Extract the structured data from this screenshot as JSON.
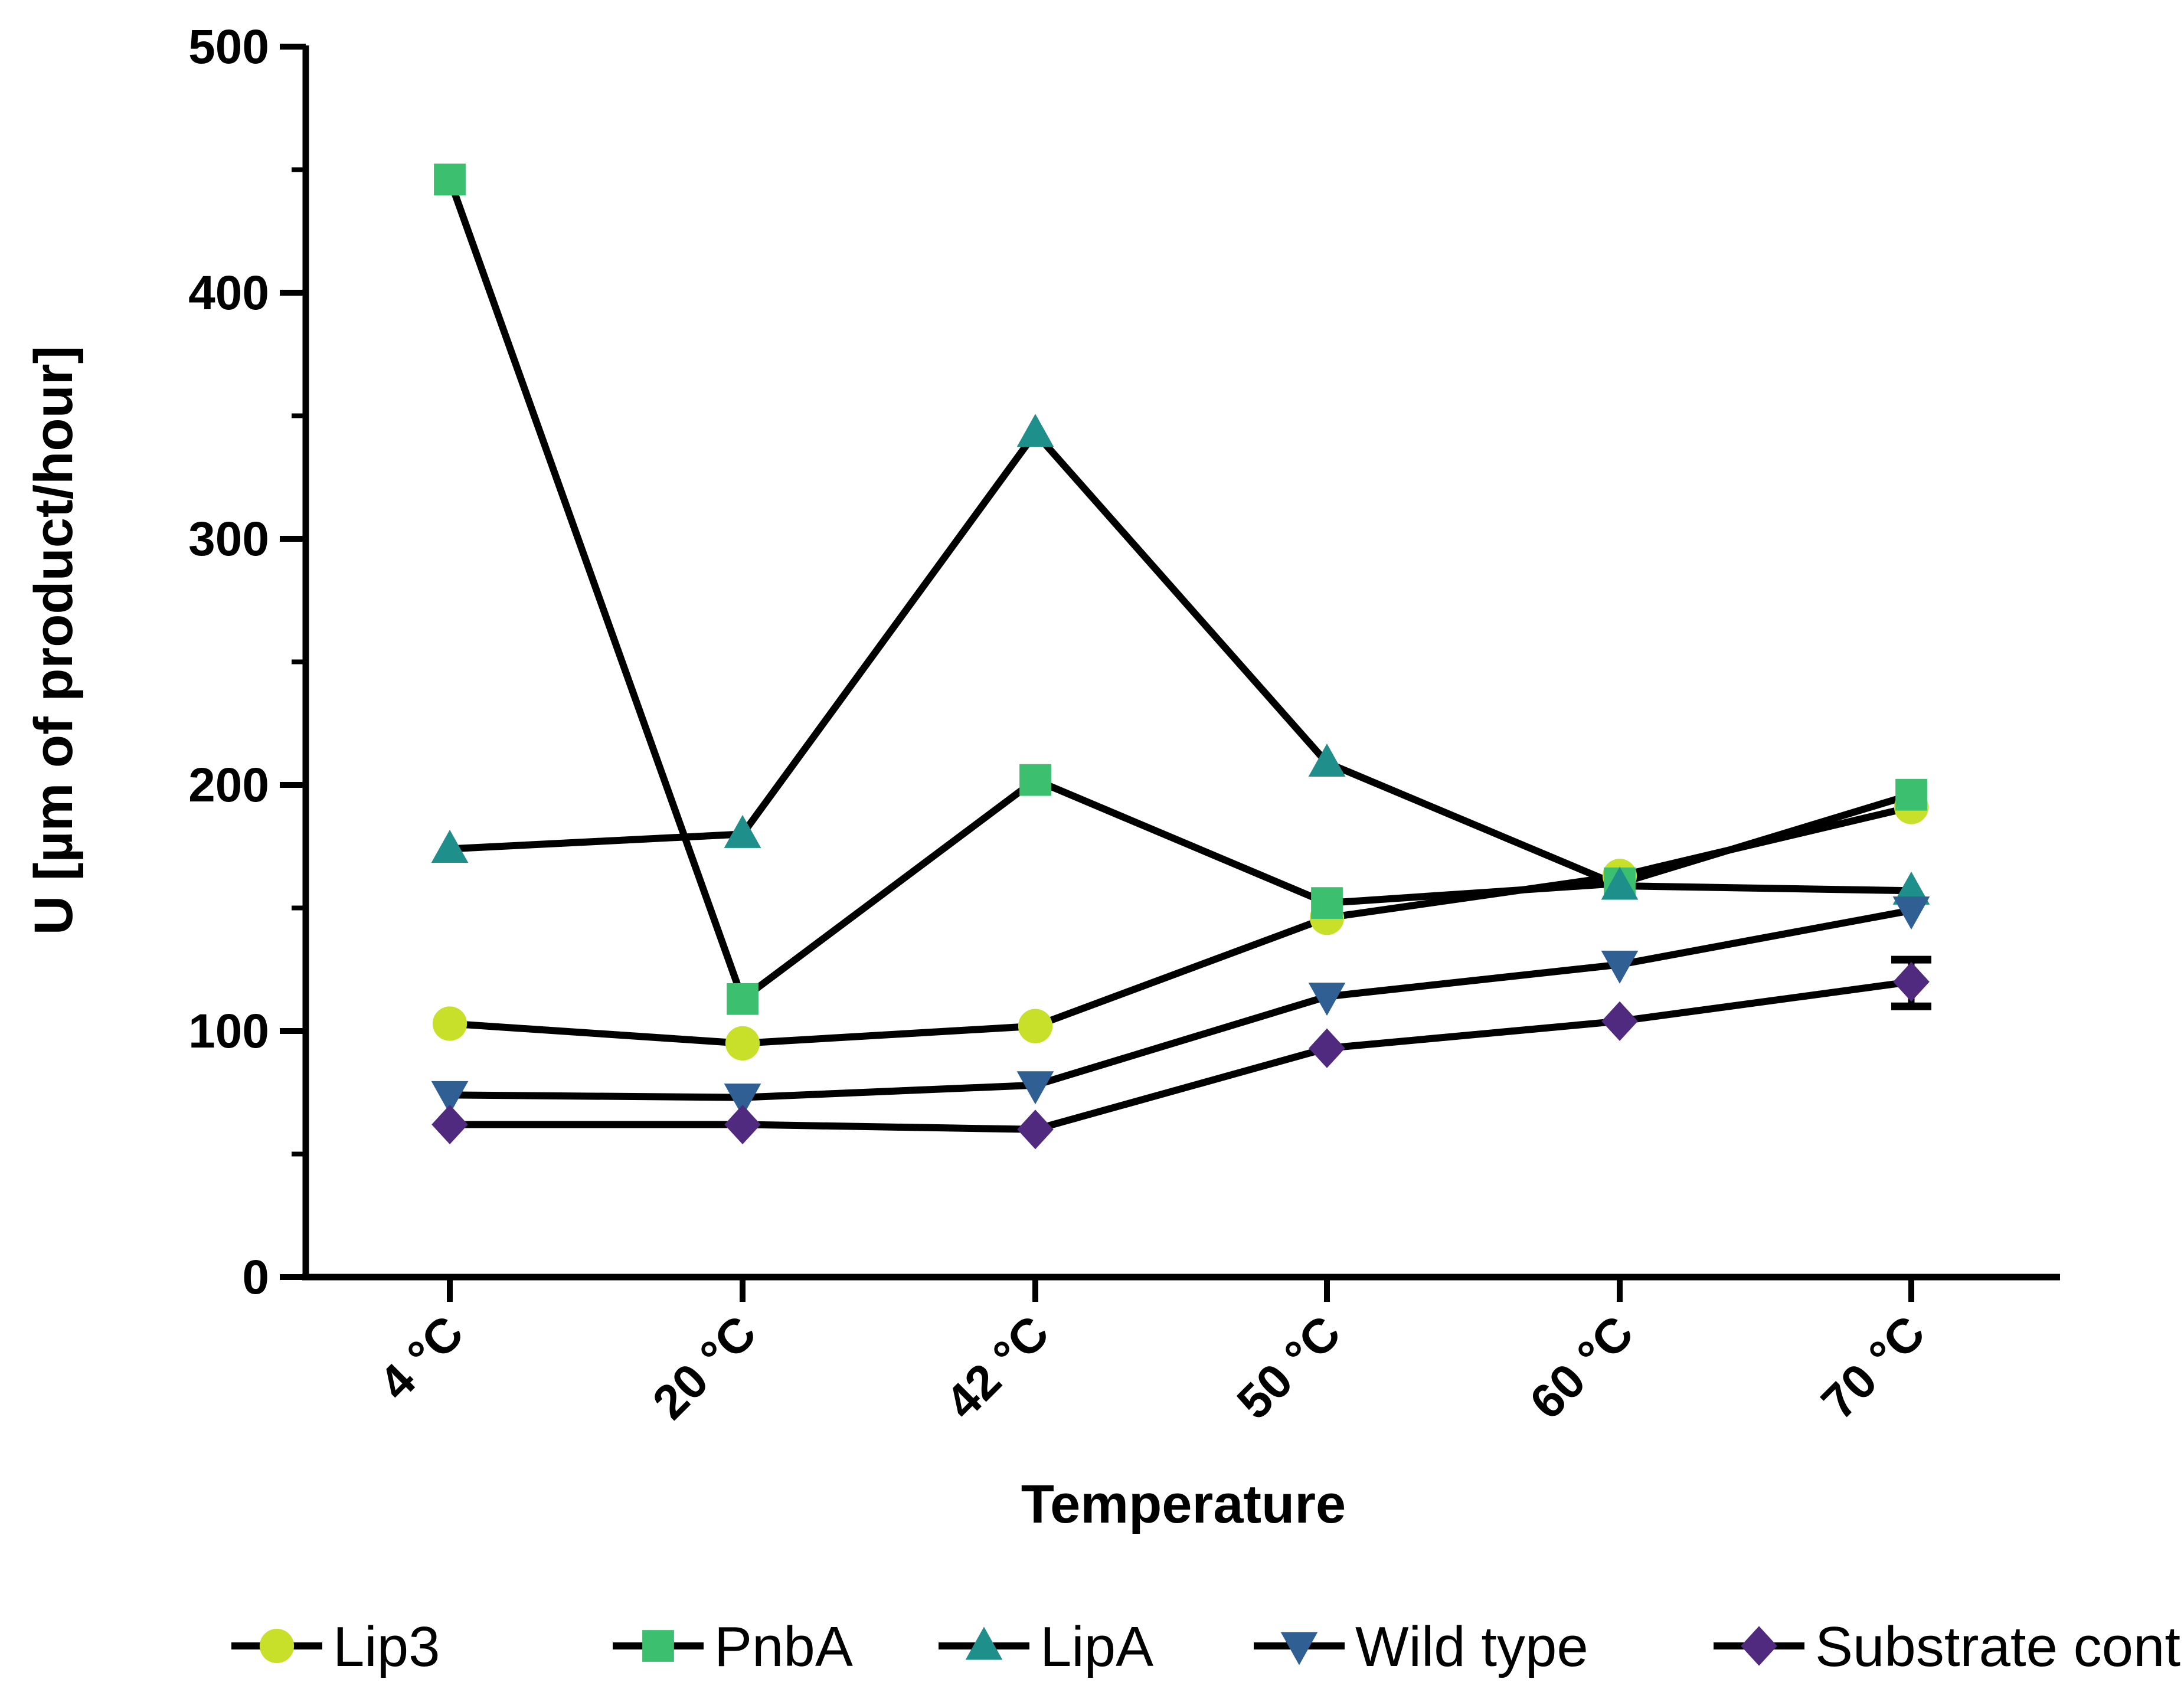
{
  "chart_data": {
    "type": "line",
    "title": "",
    "xlabel": "Temperature",
    "ylabel": "U [µm of product/hour]",
    "categories": [
      "4 °C",
      "20 °C",
      "42 °C",
      "50 °C",
      "60 °C",
      "70 °C"
    ],
    "ylim": [
      0,
      500
    ],
    "yticks": [
      "0",
      "100",
      "200",
      "300",
      "400",
      "500"
    ],
    "grid": false,
    "legend_position": "bottom",
    "series": [
      {
        "name": "Lip3",
        "marker": "circle",
        "color": "#c8e02a",
        "values": [
          103,
          95,
          102,
          146,
          163,
          191
        ]
      },
      {
        "name": "PnbA",
        "marker": "square",
        "color": "#3cbf6e",
        "values": [
          446,
          113,
          202,
          152,
          160,
          196
        ]
      },
      {
        "name": "LipA",
        "marker": "triangle-up",
        "color": "#1f8f8c",
        "values": [
          174,
          180,
          343,
          209,
          159,
          157
        ]
      },
      {
        "name": "Wild type",
        "marker": "triangle-down",
        "color": "#305f94",
        "values": [
          74,
          73,
          78,
          114,
          127,
          149
        ]
      },
      {
        "name": "Substrate control",
        "marker": "diamond",
        "color": "#4f2a7e",
        "values": [
          62,
          62,
          60,
          93,
          104,
          120
        ]
      }
    ],
    "error_bars": [
      {
        "series": "Substrate control",
        "category": "70 °C",
        "low": 110,
        "high": 129
      }
    ]
  }
}
